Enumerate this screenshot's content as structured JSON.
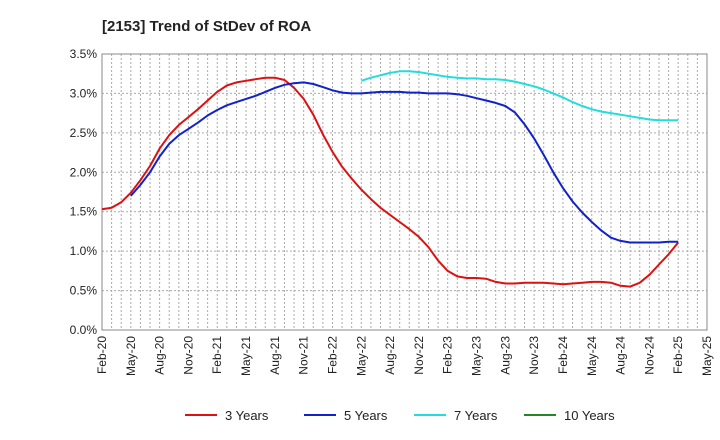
{
  "chart_data": {
    "type": "line",
    "title": "[2153]  Trend of StDev of ROA",
    "xlabel": "",
    "ylabel": "",
    "ylim": [
      0,
      3.5
    ],
    "y_ticks": [
      "0.0%",
      "0.5%",
      "1.0%",
      "1.5%",
      "2.0%",
      "2.5%",
      "3.0%",
      "3.5%"
    ],
    "x_ticks": [
      "Feb-20",
      "May-20",
      "Aug-20",
      "Nov-20",
      "Feb-21",
      "May-21",
      "Aug-21",
      "Nov-21",
      "Feb-22",
      "May-22",
      "Aug-22",
      "Nov-22",
      "Feb-23",
      "May-23",
      "Aug-23",
      "Nov-23",
      "Feb-24",
      "May-24",
      "Aug-24",
      "Nov-24",
      "Feb-25",
      "May-25"
    ],
    "grid": true,
    "legend": "bottom",
    "series": [
      {
        "name": "3 Years",
        "color": "#dd1111",
        "points": [
          [
            "Feb-20",
            1.53
          ],
          [
            "Mar-20",
            1.55
          ],
          [
            "Apr-20",
            1.62
          ],
          [
            "May-20",
            1.74
          ],
          [
            "Jun-20",
            1.9
          ],
          [
            "Jul-20",
            2.08
          ],
          [
            "Aug-20",
            2.3
          ],
          [
            "Sep-20",
            2.47
          ],
          [
            "Oct-20",
            2.6
          ],
          [
            "Nov-20",
            2.7
          ],
          [
            "Dec-20",
            2.8
          ],
          [
            "Jan-21",
            2.91
          ],
          [
            "Feb-21",
            3.02
          ],
          [
            "Mar-21",
            3.1
          ],
          [
            "Apr-21",
            3.14
          ],
          [
            "May-21",
            3.16
          ],
          [
            "Jun-21",
            3.18
          ],
          [
            "Jul-21",
            3.2
          ],
          [
            "Aug-21",
            3.2
          ],
          [
            "Sep-21",
            3.17
          ],
          [
            "Oct-21",
            3.07
          ],
          [
            "Nov-21",
            2.93
          ],
          [
            "Dec-21",
            2.73
          ],
          [
            "Jan-22",
            2.48
          ],
          [
            "Feb-22",
            2.26
          ],
          [
            "Mar-22",
            2.07
          ],
          [
            "Apr-22",
            1.92
          ],
          [
            "May-22",
            1.78
          ],
          [
            "Jun-22",
            1.66
          ],
          [
            "Jul-22",
            1.55
          ],
          [
            "Aug-22",
            1.46
          ],
          [
            "Sep-22",
            1.37
          ],
          [
            "Oct-22",
            1.28
          ],
          [
            "Nov-22",
            1.18
          ],
          [
            "Dec-22",
            1.05
          ],
          [
            "Jan-23",
            0.88
          ],
          [
            "Feb-23",
            0.75
          ],
          [
            "Mar-23",
            0.68
          ],
          [
            "Apr-23",
            0.66
          ],
          [
            "May-23",
            0.66
          ],
          [
            "Jun-23",
            0.65
          ],
          [
            "Jul-23",
            0.61
          ],
          [
            "Aug-23",
            0.59
          ],
          [
            "Sep-23",
            0.59
          ],
          [
            "Oct-23",
            0.6
          ],
          [
            "Nov-23",
            0.6
          ],
          [
            "Dec-23",
            0.6
          ],
          [
            "Jan-24",
            0.59
          ],
          [
            "Feb-24",
            0.58
          ],
          [
            "Mar-24",
            0.59
          ],
          [
            "Apr-24",
            0.6
          ],
          [
            "May-24",
            0.61
          ],
          [
            "Jun-24",
            0.61
          ],
          [
            "Jul-24",
            0.6
          ],
          [
            "Aug-24",
            0.56
          ],
          [
            "Sep-24",
            0.55
          ],
          [
            "Oct-24",
            0.6
          ],
          [
            "Nov-24",
            0.7
          ],
          [
            "Dec-24",
            0.83
          ],
          [
            "Jan-25",
            0.96
          ],
          [
            "Feb-25",
            1.11
          ]
        ]
      },
      {
        "name": "5 Years",
        "color": "#1122cc",
        "points": [
          [
            "May-20",
            1.7
          ],
          [
            "Jun-20",
            1.84
          ],
          [
            "Jul-20",
            2.0
          ],
          [
            "Aug-20",
            2.2
          ],
          [
            "Sep-20",
            2.36
          ],
          [
            "Oct-20",
            2.47
          ],
          [
            "Nov-20",
            2.55
          ],
          [
            "Dec-20",
            2.63
          ],
          [
            "Jan-21",
            2.72
          ],
          [
            "Feb-21",
            2.79
          ],
          [
            "Mar-21",
            2.85
          ],
          [
            "Apr-21",
            2.89
          ],
          [
            "May-21",
            2.93
          ],
          [
            "Jun-21",
            2.97
          ],
          [
            "Jul-21",
            3.02
          ],
          [
            "Aug-21",
            3.07
          ],
          [
            "Sep-21",
            3.11
          ],
          [
            "Oct-21",
            3.13
          ],
          [
            "Nov-21",
            3.14
          ],
          [
            "Dec-21",
            3.12
          ],
          [
            "Jan-22",
            3.08
          ],
          [
            "Feb-22",
            3.04
          ],
          [
            "Mar-22",
            3.01
          ],
          [
            "Apr-22",
            3.0
          ],
          [
            "May-22",
            3.0
          ],
          [
            "Jun-22",
            3.01
          ],
          [
            "Jul-22",
            3.02
          ],
          [
            "Aug-22",
            3.02
          ],
          [
            "Sep-22",
            3.02
          ],
          [
            "Oct-22",
            3.01
          ],
          [
            "Nov-22",
            3.01
          ],
          [
            "Dec-22",
            3.0
          ],
          [
            "Jan-23",
            3.0
          ],
          [
            "Feb-23",
            3.0
          ],
          [
            "Mar-23",
            2.99
          ],
          [
            "Apr-23",
            2.97
          ],
          [
            "May-23",
            2.94
          ],
          [
            "Jun-23",
            2.91
          ],
          [
            "Jul-23",
            2.88
          ],
          [
            "Aug-23",
            2.84
          ],
          [
            "Sep-23",
            2.76
          ],
          [
            "Oct-23",
            2.61
          ],
          [
            "Nov-23",
            2.43
          ],
          [
            "Dec-23",
            2.22
          ],
          [
            "Jan-24",
            2.0
          ],
          [
            "Feb-24",
            1.8
          ],
          [
            "Mar-24",
            1.63
          ],
          [
            "Apr-24",
            1.49
          ],
          [
            "May-24",
            1.37
          ],
          [
            "Jun-24",
            1.26
          ],
          [
            "Jul-24",
            1.17
          ],
          [
            "Aug-24",
            1.13
          ],
          [
            "Sep-24",
            1.11
          ],
          [
            "Oct-24",
            1.11
          ],
          [
            "Nov-24",
            1.11
          ],
          [
            "Dec-24",
            1.11
          ],
          [
            "Jan-25",
            1.12
          ],
          [
            "Feb-25",
            1.12
          ]
        ]
      },
      {
        "name": "7 Years",
        "color": "#22dddd",
        "points": [
          [
            "May-22",
            3.16
          ],
          [
            "Jun-22",
            3.2
          ],
          [
            "Jul-22",
            3.23
          ],
          [
            "Aug-22",
            3.26
          ],
          [
            "Sep-22",
            3.28
          ],
          [
            "Oct-22",
            3.28
          ],
          [
            "Nov-22",
            3.27
          ],
          [
            "Dec-22",
            3.25
          ],
          [
            "Jan-23",
            3.23
          ],
          [
            "Feb-23",
            3.21
          ],
          [
            "Mar-23",
            3.2
          ],
          [
            "Apr-23",
            3.19
          ],
          [
            "May-23",
            3.19
          ],
          [
            "Jun-23",
            3.18
          ],
          [
            "Jul-23",
            3.18
          ],
          [
            "Aug-23",
            3.17
          ],
          [
            "Sep-23",
            3.15
          ],
          [
            "Oct-23",
            3.12
          ],
          [
            "Nov-23",
            3.09
          ],
          [
            "Dec-23",
            3.05
          ],
          [
            "Jan-24",
            3.0
          ],
          [
            "Feb-24",
            2.95
          ],
          [
            "Mar-24",
            2.89
          ],
          [
            "Apr-24",
            2.84
          ],
          [
            "May-24",
            2.8
          ],
          [
            "Jun-24",
            2.77
          ],
          [
            "Jul-24",
            2.75
          ],
          [
            "Aug-24",
            2.73
          ],
          [
            "Sep-24",
            2.71
          ],
          [
            "Oct-24",
            2.69
          ],
          [
            "Nov-24",
            2.67
          ],
          [
            "Dec-24",
            2.66
          ],
          [
            "Jan-25",
            2.66
          ],
          [
            "Feb-25",
            2.66
          ]
        ]
      },
      {
        "name": "10 Years",
        "color": "#228822",
        "points": []
      }
    ]
  }
}
